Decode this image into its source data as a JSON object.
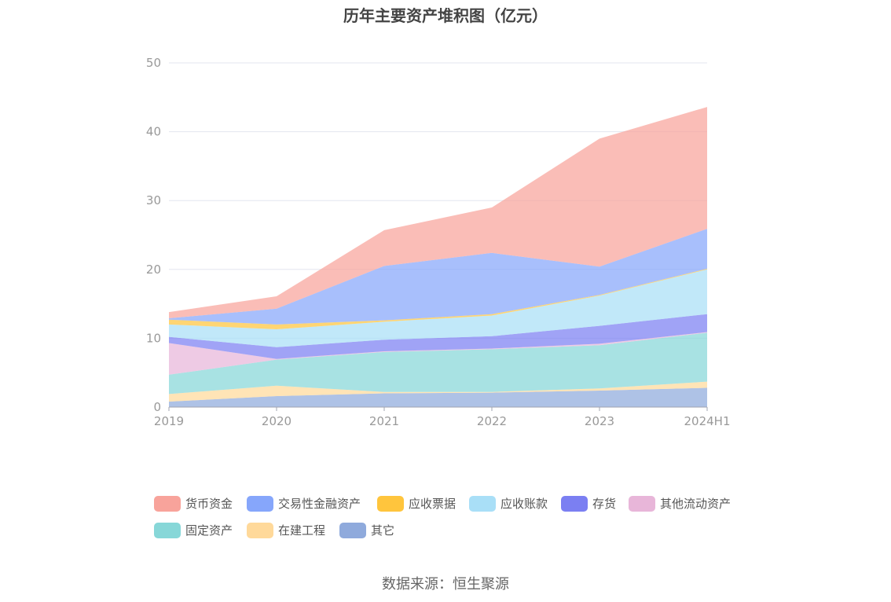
{
  "chart_data": {
    "type": "area",
    "stacked": true,
    "title": "历年主要资产堆积图（亿元）",
    "categories": [
      "2019",
      "2020",
      "2021",
      "2022",
      "2023",
      "2024H1"
    ],
    "ylim": [
      0,
      50
    ],
    "yticks": [
      "0",
      "10",
      "20",
      "30",
      "40",
      "50"
    ],
    "grid": true,
    "legend_position": "bottom",
    "series": [
      {
        "name": "其它",
        "color": "#8faadc",
        "values": [
          0.8,
          1.6,
          2.0,
          2.1,
          2.4,
          2.8
        ]
      },
      {
        "name": "在建工程",
        "color": "#ffd99a",
        "values": [
          1.1,
          1.5,
          0.2,
          0.1,
          0.3,
          0.9
        ]
      },
      {
        "name": "固定资产",
        "color": "#87d7d8",
        "values": [
          2.8,
          3.8,
          5.8,
          6.2,
          6.3,
          7.1
        ]
      },
      {
        "name": "其他流动资产",
        "color": "#e8b6d9",
        "values": [
          4.6,
          0.1,
          0.1,
          0.1,
          0.2,
          0.1
        ]
      },
      {
        "name": "存货",
        "color": "#7b7ff2",
        "values": [
          0.9,
          1.7,
          1.7,
          1.8,
          2.6,
          2.6
        ]
      },
      {
        "name": "应收账款",
        "color": "#a9dff7",
        "values": [
          1.8,
          2.6,
          2.6,
          3.0,
          4.4,
          6.5
        ]
      },
      {
        "name": "应收票据",
        "color": "#ffc53d",
        "values": [
          0.7,
          0.7,
          0.2,
          0.2,
          0.1,
          0.1
        ]
      },
      {
        "name": "交易性金融资产",
        "color": "#86a6fb",
        "values": [
          0.2,
          2.3,
          7.9,
          8.9,
          4.1,
          5.8
        ]
      },
      {
        "name": "货币资金",
        "color": "#f8a39b",
        "values": [
          0.9,
          1.8,
          5.2,
          6.6,
          18.6,
          17.7
        ]
      }
    ]
  },
  "legend": [
    {
      "label": "货币资金",
      "color": "#f8a39b"
    },
    {
      "label": "交易性金融资产",
      "color": "#86a6fb"
    },
    {
      "label": "应收票据",
      "color": "#ffc53d"
    },
    {
      "label": "应收账款",
      "color": "#a9dff7"
    },
    {
      "label": "存货",
      "color": "#7b7ff2"
    },
    {
      "label": "其他流动资产",
      "color": "#e8b6d9"
    },
    {
      "label": "固定资产",
      "color": "#87d7d8"
    },
    {
      "label": "在建工程",
      "color": "#ffd99a"
    },
    {
      "label": "其它",
      "color": "#8faadc"
    }
  ],
  "source": "数据来源：恒生聚源"
}
